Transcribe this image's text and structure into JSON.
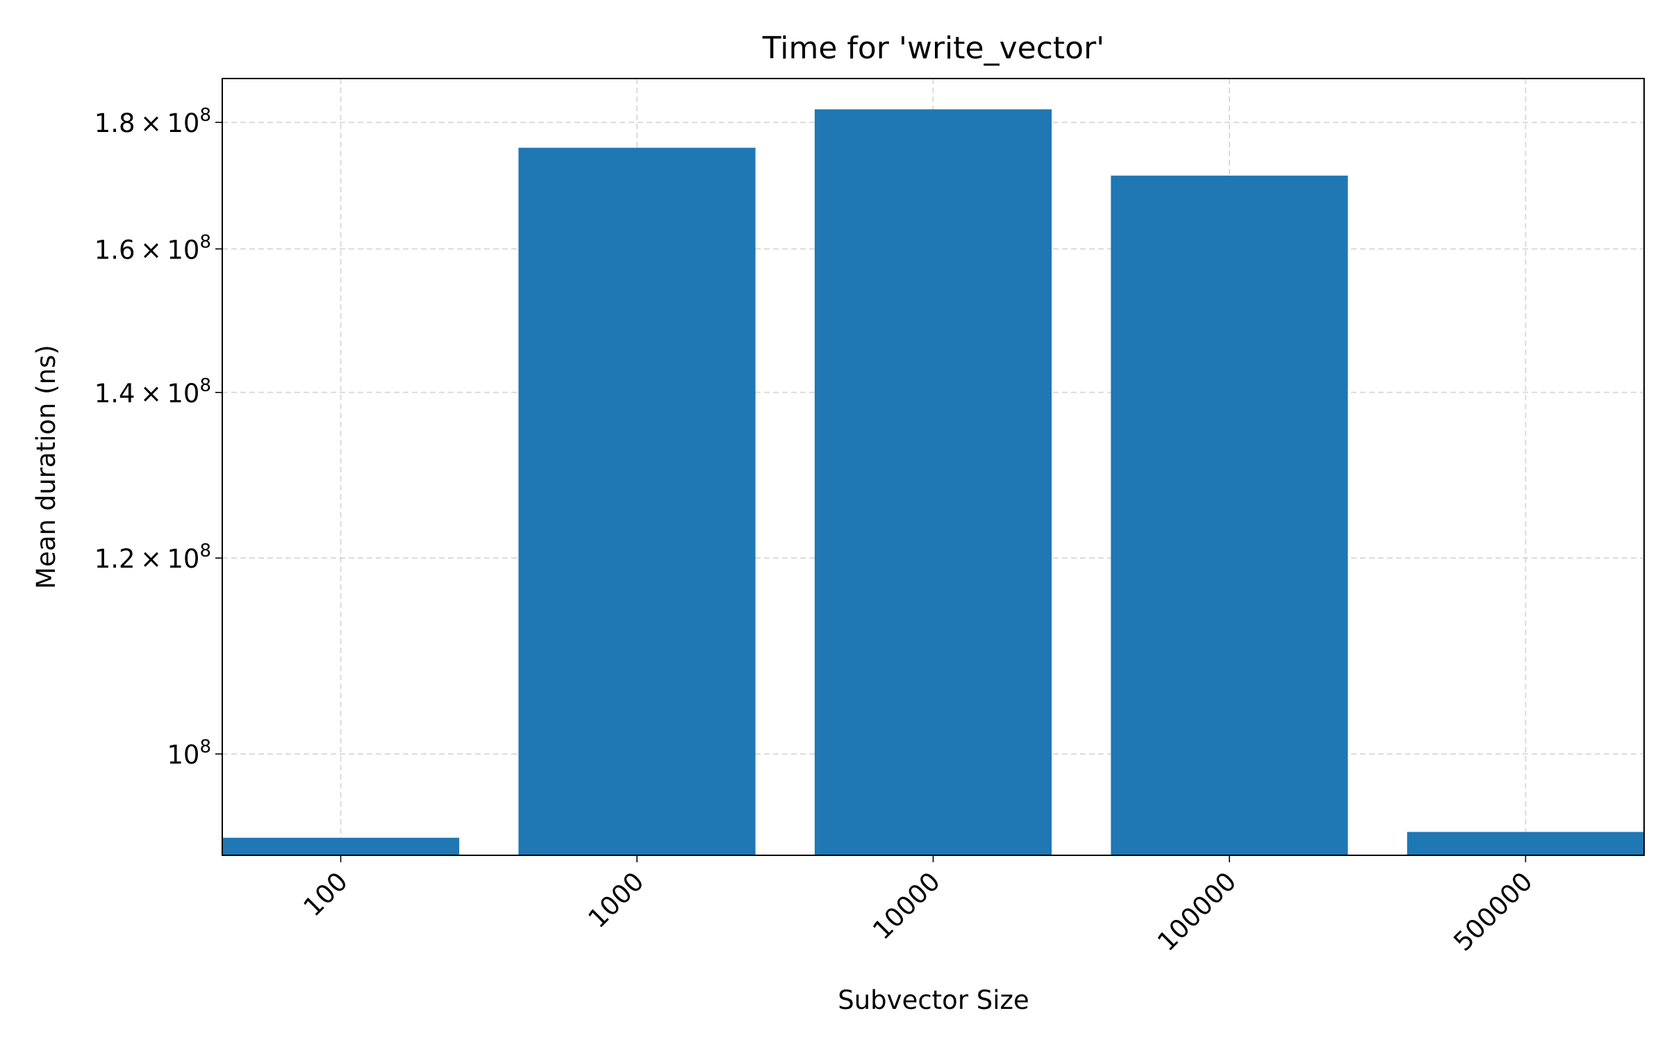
{
  "chart_data": {
    "type": "bar",
    "title": "Time for 'write_vector'",
    "xlabel": "Subvector Size",
    "ylabel": "Mean duration (ns)",
    "categories": [
      "100",
      "1000",
      "10000",
      "100000",
      "500000"
    ],
    "values": [
      92500000,
      175800000,
      182200000,
      171300000,
      93000000
    ],
    "ylim": [
      91000000,
      187500000
    ],
    "yscale": "log",
    "yticks": [
      {
        "value": 100000000,
        "mantissa": "",
        "exponent": "8"
      },
      {
        "value": 120000000,
        "mantissa": "1.2",
        "exponent": "8"
      },
      {
        "value": 140000000,
        "mantissa": "1.4",
        "exponent": "8"
      },
      {
        "value": 160000000,
        "mantissa": "1.6",
        "exponent": "8"
      },
      {
        "value": 180000000,
        "mantissa": "1.8",
        "exponent": "8"
      }
    ],
    "grid": true,
    "bar_color": "#1f77b4"
  }
}
